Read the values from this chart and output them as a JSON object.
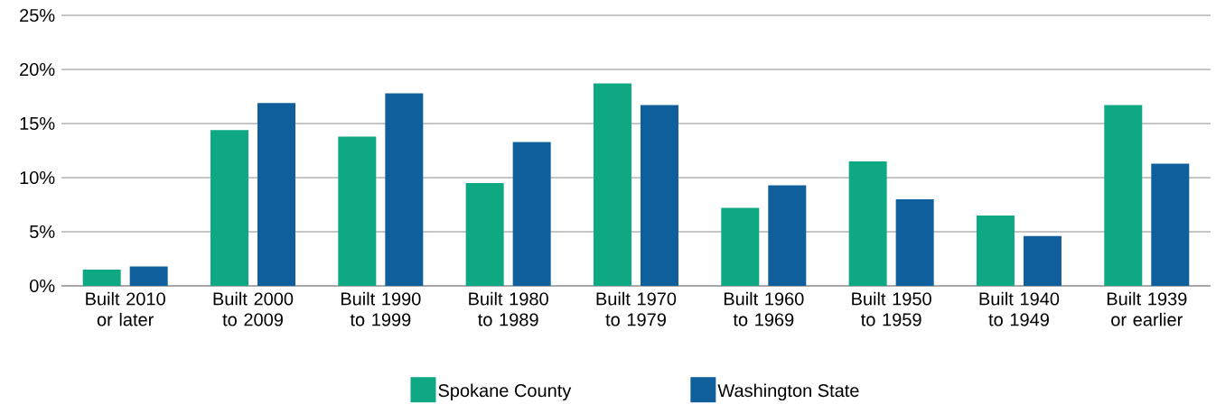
{
  "chart_data": {
    "type": "bar",
    "categories": [
      "Built 2010 or later",
      "Built 2000 to 2009",
      "Built 1990 to 1999",
      "Built 1980 to 1989",
      "Built 1970 to 1979",
      "Built 1960 to 1969",
      "Built 1950 to 1959",
      "Built 1940 to 1949",
      "Built 1939 or earlier"
    ],
    "series": [
      {
        "name": "Spokane County",
        "color": "#0ea882",
        "values": [
          1.5,
          14.4,
          13.8,
          9.5,
          18.7,
          7.2,
          11.5,
          6.5,
          16.7
        ]
      },
      {
        "name": "Washington State",
        "color": "#0f5f9c",
        "values": [
          1.8,
          16.9,
          17.8,
          13.3,
          16.7,
          9.3,
          8.0,
          4.6,
          11.3
        ]
      }
    ],
    "ylim": [
      0,
      25
    ],
    "yticks": [
      {
        "value": 0,
        "label": "0%"
      },
      {
        "value": 5,
        "label": "5%"
      },
      {
        "value": 10,
        "label": "10%"
      },
      {
        "value": 15,
        "label": "15%"
      },
      {
        "value": 20,
        "label": "20%"
      },
      {
        "value": 25,
        "label": "25%"
      }
    ],
    "grid": "y",
    "legend": "bottom"
  }
}
